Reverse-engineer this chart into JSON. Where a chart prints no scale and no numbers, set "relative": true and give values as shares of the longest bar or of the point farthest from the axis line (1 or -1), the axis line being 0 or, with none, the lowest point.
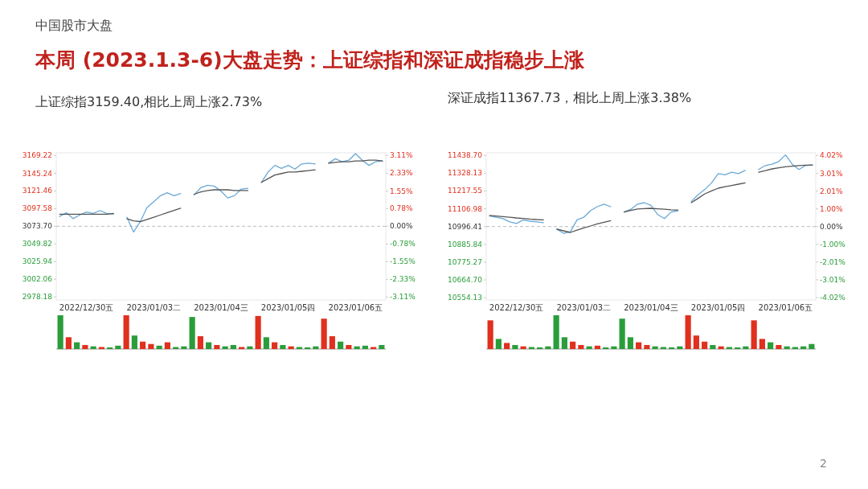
{
  "chart_data": [
    {
      "type": "other",
      "title": "本周 (2023.1.3-6)大盘走势：上证综指和深证成指稳步上涨",
      "subtitle": "中国股市大盘",
      "annotations": [
        "2"
      ]
    },
    {
      "type": "line",
      "title": "上证综指3159.40,相比上周上涨2.73%",
      "categories": [
        null,
        null,
        null,
        null,
        "2022/12/30五",
        null,
        null,
        null,
        null,
        null,
        null,
        null,
        null,
        null,
        "2023/01/03二",
        null,
        null,
        null,
        null,
        null,
        null,
        null,
        null,
        null,
        "2023/01/04三",
        null,
        null,
        null,
        null,
        null,
        null,
        null,
        null,
        null,
        "2023/01/05四",
        null,
        null,
        null,
        null,
        null,
        null,
        null,
        null,
        null,
        "2023/01/06五",
        null,
        null,
        null,
        null
      ],
      "ylim": [
        2974,
        3173
      ],
      "yticks": [
        2978.18,
        3002.06,
        3025.94,
        3049.82,
        {
          "value": 3073.7,
          "label": "3073.70"
        },
        3097.58,
        3121.46,
        3145.24,
        3169.22
      ],
      "y2lim": [
        -3.24,
        3.23
      ],
      "y2ticks": [
        {
          "value": -3.11,
          "label": "-3.11%"
        },
        {
          "value": -2.33,
          "label": "-2.33%"
        },
        {
          "value": -1.55,
          "label": "-1.55%"
        },
        {
          "value": -0.78,
          "label": "-0.78%"
        },
        {
          "value": 0,
          "label": "0.00%"
        },
        {
          "value": 0.78,
          "label": "0.78%"
        },
        {
          "value": 1.55,
          "label": "1.55%"
        },
        {
          "value": 2.33,
          "label": "2.33%"
        },
        {
          "value": 3.11,
          "label": "3.11%"
        }
      ],
      "ref_lines": [
        {
          "axis": "y",
          "value": 3073.7,
          "line_style": "dashed",
          "color": "#bbbbbb"
        }
      ],
      "series": [
        {
          "color": "#6aa9d6",
          "values": [
            3087,
            3092,
            3084,
            3089,
            3093,
            3091,
            3095,
            3091,
            3090,
            null,
            3086,
            3066,
            3080,
            3099,
            3107,
            3115,
            3119,
            3115,
            3118,
            null,
            3116,
            3126,
            3129,
            3128,
            3121,
            3112,
            3115,
            3124,
            3125,
            null,
            3133,
            3147,
            3156,
            3152,
            3156,
            3151,
            3158,
            3159,
            3158,
            null,
            3159,
            3165,
            3161,
            3163,
            3172,
            3163,
            3156,
            3161,
            3162
          ]
        },
        {
          "color": "#555555",
          "values": [
            3090,
            3090,
            3090,
            3090,
            3090,
            3090,
            3090,
            3090,
            3091,
            null,
            3084,
            3081,
            3080,
            3083,
            3086,
            3089,
            3092,
            3095,
            3098,
            null,
            3117,
            3120,
            3122,
            3123,
            3123,
            3123,
            3122,
            3122,
            3122,
            null,
            3133,
            3138,
            3143,
            3145,
            3147,
            3147,
            3148,
            3149,
            3150,
            null,
            3159,
            3160,
            3161,
            3161,
            3162,
            3162,
            3163,
            3163,
            3162
          ]
        }
      ]
    },
    {
      "type": "bar",
      "relative": true,
      "categories": [
        null,
        null,
        null,
        null,
        null,
        null,
        null,
        null,
        null,
        null,
        null,
        null,
        null,
        null,
        null,
        null,
        null,
        null,
        null,
        null,
        null,
        null,
        null,
        null,
        null,
        null,
        null,
        null,
        null,
        null,
        null,
        null,
        null,
        null,
        null,
        null,
        null,
        null,
        null,
        null
      ],
      "values": [
        1.0,
        0.35,
        0.2,
        0.12,
        0.08,
        0.06,
        0.05,
        0.1,
        1.0,
        0.4,
        0.22,
        0.15,
        0.1,
        0.2,
        0.06,
        0.08,
        0.95,
        0.38,
        0.2,
        0.12,
        0.08,
        0.12,
        0.06,
        0.08,
        0.98,
        0.35,
        0.2,
        0.12,
        0.08,
        0.06,
        0.05,
        0.08,
        0.9,
        0.38,
        0.22,
        0.12,
        0.08,
        0.1,
        0.06,
        0.12
      ],
      "colors": [
        "#2a9d3a",
        "#e0301e",
        "#2a9d3a",
        "#e0301e",
        "#2a9d3a",
        "#e0301e",
        "#2a9d3a",
        "#2a9d3a",
        "#e0301e",
        "#2a9d3a",
        "#e0301e",
        "#e0301e",
        "#2a9d3a",
        "#e0301e",
        "#2a9d3a",
        "#2a9d3a",
        "#2a9d3a",
        "#e0301e",
        "#2a9d3a",
        "#e0301e",
        "#2a9d3a",
        "#2a9d3a",
        "#e0301e",
        "#2a9d3a",
        "#e0301e",
        "#2a9d3a",
        "#e0301e",
        "#2a9d3a",
        "#e0301e",
        "#2a9d3a",
        "#2a9d3a",
        "#2a9d3a",
        "#e0301e",
        "#e0301e",
        "#2a9d3a",
        "#e0301e",
        "#2a9d3a",
        "#2a9d3a",
        "#e0301e",
        "#2a9d3a"
      ]
    },
    {
      "type": "line",
      "title": "深证成指11367.73，相比上周上涨3.38%",
      "categories": [
        null,
        null,
        null,
        null,
        "2022/12/30五",
        null,
        null,
        null,
        null,
        null,
        null,
        null,
        null,
        null,
        "2023/01/03二",
        null,
        null,
        null,
        null,
        null,
        null,
        null,
        null,
        null,
        "2023/01/04三",
        null,
        null,
        null,
        null,
        null,
        null,
        null,
        null,
        null,
        "2023/01/05四",
        null,
        null,
        null,
        null,
        null,
        null,
        null,
        null,
        null,
        "2023/01/06五",
        null,
        null,
        null,
        null
      ],
      "ylim": [
        10540,
        11455
      ],
      "yticks": [
        10554.13,
        {
          "value": 10664.7,
          "label": "10664.70"
        },
        10775.27,
        10885.84,
        10996.41,
        11106.98,
        11217.55,
        11328.13,
        {
          "value": 11438.7,
          "label": "11438.70"
        }
      ],
      "y2lim": [
        -4.15,
        4.17
      ],
      "y2ticks": [
        {
          "value": -4.02,
          "label": "-4.02%"
        },
        {
          "value": -3.01,
          "label": "-3.01%"
        },
        {
          "value": -2.01,
          "label": "-2.01%"
        },
        {
          "value": -1.0,
          "label": "-1.00%"
        },
        {
          "value": 0,
          "label": "0.00%"
        },
        {
          "value": 1.0,
          "label": "1.00%"
        },
        {
          "value": 2.01,
          "label": "2.01%"
        },
        {
          "value": 3.01,
          "label": "3.01%"
        },
        {
          "value": 4.02,
          "label": "4.02%"
        }
      ],
      "ref_lines": [
        {
          "axis": "y",
          "value": 10996.41,
          "line_style": "dashed",
          "color": "#bbbbbb"
        }
      ],
      "series": [
        {
          "color": "#6aa9d6",
          "values": [
            11062,
            11054,
            11046,
            11026,
            11016,
            11038,
            11030,
            11026,
            11021,
            null,
            10980,
            10955,
            10963,
            11038,
            11054,
            11095,
            11120,
            11136,
            11120,
            null,
            11087,
            11104,
            11136,
            11145,
            11128,
            11071,
            11046,
            11087,
            11095,
            null,
            11153,
            11194,
            11227,
            11268,
            11326,
            11318,
            11334,
            11326,
            11346,
            null,
            11351,
            11376,
            11384,
            11401,
            11442,
            11384,
            11351,
            11376,
            11379
          ]
        },
        {
          "color": "#555555",
          "values": [
            11066,
            11062,
            11058,
            11054,
            11050,
            11047,
            11043,
            11040,
            11038,
            null,
            10980,
            10970,
            10960,
            10974,
            10988,
            11000,
            11013,
            11023,
            11033,
            null,
            11087,
            11097,
            11106,
            11108,
            11110,
            11107,
            11104,
            11101,
            11099,
            null,
            11145,
            11172,
            11200,
            11218,
            11235,
            11244,
            11252,
            11260,
            11268,
            null,
            11334,
            11344,
            11355,
            11362,
            11368,
            11372,
            11376,
            11378,
            11379
          ]
        }
      ]
    },
    {
      "type": "bar",
      "relative": true,
      "categories": [
        null,
        null,
        null,
        null,
        null,
        null,
        null,
        null,
        null,
        null,
        null,
        null,
        null,
        null,
        null,
        null,
        null,
        null,
        null,
        null,
        null,
        null,
        null,
        null,
        null,
        null,
        null,
        null,
        null,
        null,
        null,
        null,
        null,
        null,
        null,
        null,
        null,
        null,
        null,
        null
      ],
      "values": [
        0.85,
        0.3,
        0.18,
        0.12,
        0.08,
        0.06,
        0.05,
        0.08,
        1.0,
        0.35,
        0.22,
        0.12,
        0.08,
        0.1,
        0.05,
        0.08,
        0.9,
        0.35,
        0.2,
        0.12,
        0.08,
        0.06,
        0.05,
        0.08,
        1.0,
        0.4,
        0.22,
        0.12,
        0.08,
        0.06,
        0.05,
        0.08,
        0.85,
        0.3,
        0.2,
        0.12,
        0.08,
        0.06,
        0.08,
        0.15
      ],
      "colors": [
        "#e0301e",
        "#2a9d3a",
        "#e0301e",
        "#2a9d3a",
        "#e0301e",
        "#2a9d3a",
        "#2a9d3a",
        "#2a9d3a",
        "#2a9d3a",
        "#2a9d3a",
        "#e0301e",
        "#e0301e",
        "#2a9d3a",
        "#e0301e",
        "#2a9d3a",
        "#2a9d3a",
        "#2a9d3a",
        "#2a9d3a",
        "#e0301e",
        "#e0301e",
        "#2a9d3a",
        "#2a9d3a",
        "#2a9d3a",
        "#2a9d3a",
        "#e0301e",
        "#e0301e",
        "#e0301e",
        "#2a9d3a",
        "#e0301e",
        "#2a9d3a",
        "#2a9d3a",
        "#2a9d3a",
        "#e0301e",
        "#e0301e",
        "#2a9d3a",
        "#e0301e",
        "#2a9d3a",
        "#2a9d3a",
        "#2a9d3a",
        "#2a9d3a"
      ]
    }
  ]
}
